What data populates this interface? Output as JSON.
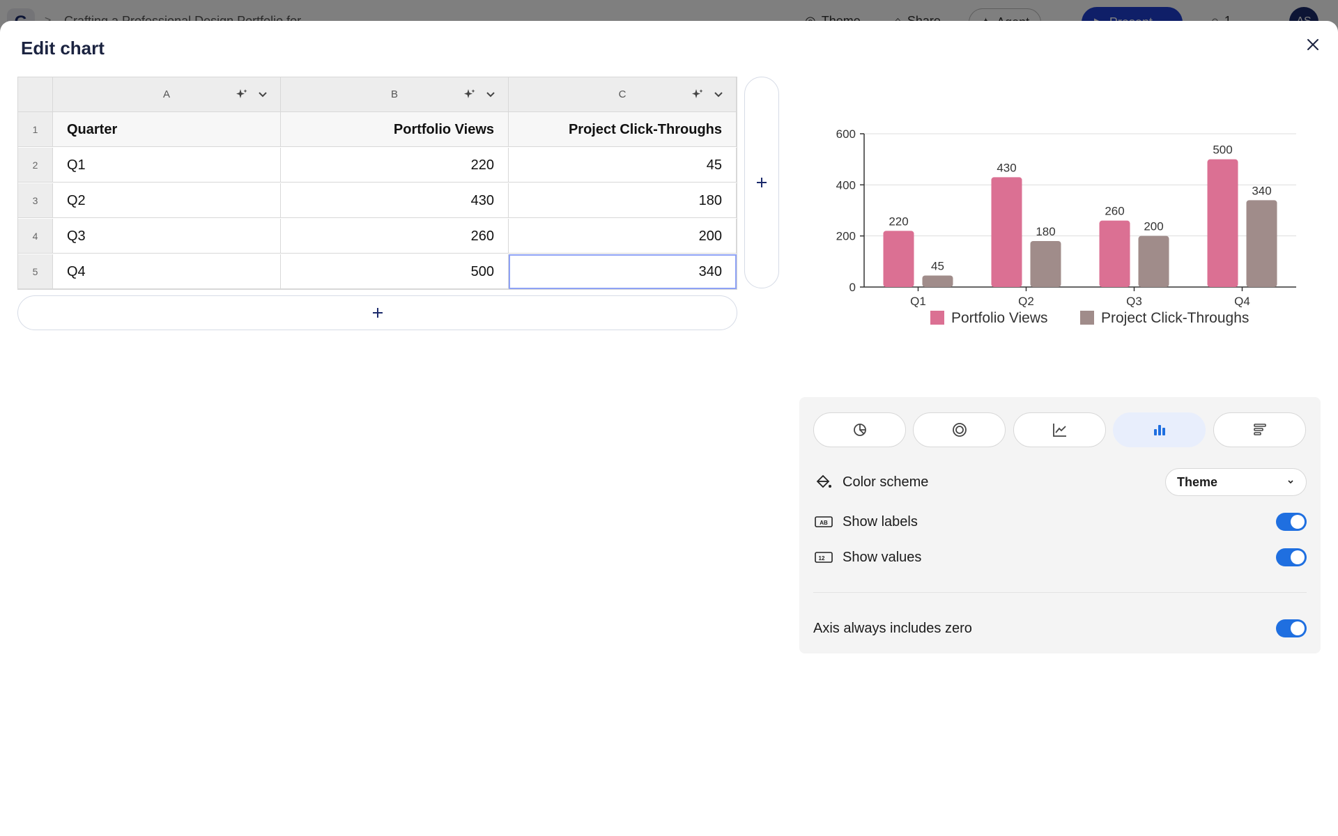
{
  "topbar": {
    "logo": "G",
    "separator": ">",
    "doc_title": "Crafting a Professional Design Portfolio for",
    "theme_label": "Theme",
    "share_label": "Share",
    "agent_label": "Agent",
    "present_label": "Present",
    "comments_count": "1",
    "more_label": "···",
    "avatar_initials": "AS"
  },
  "modal": {
    "title": "Edit chart"
  },
  "sheet": {
    "column_letters": [
      "A",
      "B",
      "C"
    ],
    "row_numbers": [
      "1",
      "2",
      "3",
      "4",
      "5"
    ],
    "rows": [
      [
        "Quarter",
        "Portfolio Views",
        "Project Click-Throughs"
      ],
      [
        "Q1",
        "220",
        "45"
      ],
      [
        "Q2",
        "430",
        "180"
      ],
      [
        "Q3",
        "260",
        "200"
      ],
      [
        "Q4",
        "500",
        "340"
      ]
    ],
    "add_column_label": "+",
    "add_row_label": "+"
  },
  "chart_data": {
    "type": "bar",
    "categories": [
      "Q1",
      "Q2",
      "Q3",
      "Q4"
    ],
    "series": [
      {
        "name": "Portfolio Views",
        "values": [
          220,
          430,
          260,
          500
        ],
        "color": "#db7093"
      },
      {
        "name": "Project Click-Throughs",
        "values": [
          45,
          180,
          200,
          340
        ],
        "color": "#a08c8a"
      }
    ],
    "yticks": [
      0,
      200,
      400,
      600
    ],
    "ylim": [
      0,
      600
    ],
    "grid": true,
    "legend": "bottom",
    "data_labels": true
  },
  "panel": {
    "chart_types": [
      {
        "icon": "pie-chart-icon",
        "active": false
      },
      {
        "icon": "donut-chart-icon",
        "active": false
      },
      {
        "icon": "line-chart-icon",
        "active": false
      },
      {
        "icon": "bar-chart-icon",
        "active": true
      },
      {
        "icon": "horizontal-bar-chart-icon",
        "active": false
      }
    ],
    "color_scheme_label": "Color scheme",
    "color_scheme_value": "Theme",
    "show_labels_label": "Show labels",
    "show_labels_on": true,
    "show_values_label": "Show values",
    "show_values_on": true,
    "axis_zero_label": "Axis always includes zero",
    "axis_zero_on": true,
    "accent_color": "#1f6fe0"
  }
}
